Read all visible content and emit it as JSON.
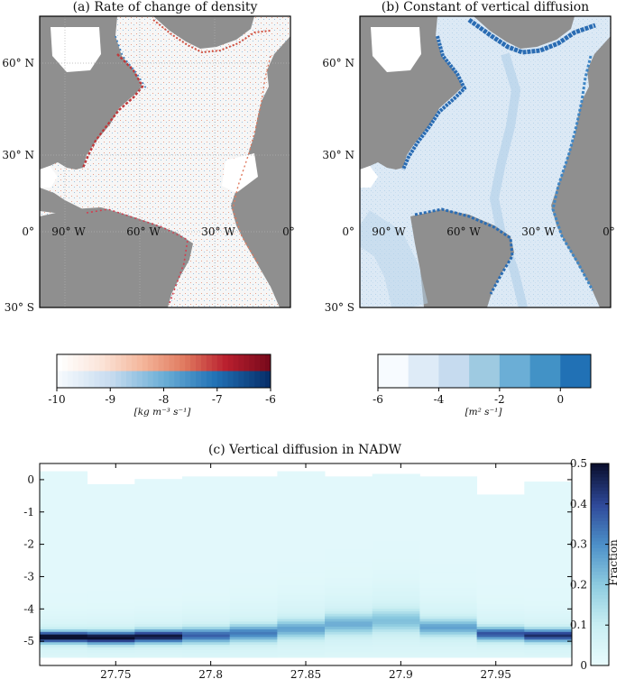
{
  "maps": {
    "a": {
      "title": "(a) Rate of change of density",
      "lat_labels": [
        "60° N",
        "30° N",
        "0°",
        "30° S"
      ],
      "lon_labels": [
        "90° W",
        "60° W",
        "30° W",
        "0°"
      ],
      "colorbar": {
        "ticks": [
          "-10",
          "-9",
          "-8",
          "-7",
          "-6"
        ],
        "label": "[kg m⁻³ s⁻¹]",
        "colors": [
          "#fbe4d9",
          "#f4b59a",
          "#e07a5f",
          "#b91f2e",
          "#7a0a1c"
        ],
        "colors_low": [
          "#f5f9fd",
          "#c6dbef",
          "#6baed6",
          "#2171b5",
          "#08306b"
        ]
      }
    },
    "b": {
      "title": "(b) Constant of vertical diffusion",
      "lat_labels": [
        "60° N",
        "30° N",
        "0°",
        "30° S"
      ],
      "lon_labels": [
        "90° W",
        "60° W",
        "30° W",
        "0°"
      ],
      "colorbar": {
        "ticks": [
          "-6",
          "-4",
          "-2",
          "0"
        ],
        "label": "[m² s⁻¹]",
        "colors": [
          "#f7fbff",
          "#deebf7",
          "#c6dbef",
          "#9ecae1",
          "#6baed6",
          "#4292c6",
          "#2171b5"
        ]
      }
    }
  },
  "chart_data": {
    "type": "heatmap",
    "title": "(c) Vertical diffusion in NADW",
    "xlabel": "",
    "ylabel": "",
    "x_ticks": [
      27.75,
      27.8,
      27.85,
      27.9,
      27.95
    ],
    "y_ticks": [
      0,
      -1,
      -2,
      -3,
      -4,
      -5
    ],
    "xlim": [
      27.71,
      27.99
    ],
    "ylim": [
      -5.75,
      0.5
    ],
    "colorbar": {
      "label": "Fraction",
      "ticks": [
        0,
        0.1,
        0.2,
        0.3,
        0.4,
        0.5
      ],
      "range": [
        0,
        0.5
      ]
    },
    "density_columns": [
      {
        "x": [
          27.71,
          27.735
        ],
        "peak_y": -4.9,
        "peak": 0.48,
        "spread": 0.35,
        "top": 0.2
      },
      {
        "x": [
          27.735,
          27.76
        ],
        "peak_y": -4.92,
        "peak": 0.45,
        "spread": 0.38,
        "top": -0.2
      },
      {
        "x": [
          27.76,
          27.785
        ],
        "peak_y": -4.88,
        "peak": 0.42,
        "spread": 0.4,
        "top": 0.0
      },
      {
        "x": [
          27.785,
          27.81
        ],
        "peak_y": -4.85,
        "peak": 0.3,
        "spread": 0.45,
        "top": 0.05
      },
      {
        "x": [
          27.81,
          27.835
        ],
        "peak_y": -4.78,
        "peak": 0.26,
        "spread": 0.5,
        "top": 0.1
      },
      {
        "x": [
          27.835,
          27.86
        ],
        "peak_y": -4.65,
        "peak": 0.2,
        "spread": 0.55,
        "top": 0.2
      },
      {
        "x": [
          27.86,
          27.885
        ],
        "peak_y": -4.5,
        "peak": 0.18,
        "spread": 0.6,
        "top": 0.1
      },
      {
        "x": [
          27.885,
          27.91
        ],
        "peak_y": -4.4,
        "peak": 0.15,
        "spread": 0.65,
        "top": 0.15
      },
      {
        "x": [
          27.91,
          27.94
        ],
        "peak_y": -4.6,
        "peak": 0.2,
        "spread": 0.5,
        "top": 0.05
      },
      {
        "x": [
          27.94,
          27.965
        ],
        "peak_y": -4.8,
        "peak": 0.32,
        "spread": 0.4,
        "top": -0.5
      },
      {
        "x": [
          27.965,
          27.99
        ],
        "peak_y": -4.85,
        "peak": 0.38,
        "spread": 0.38,
        "top": -0.1
      }
    ]
  }
}
